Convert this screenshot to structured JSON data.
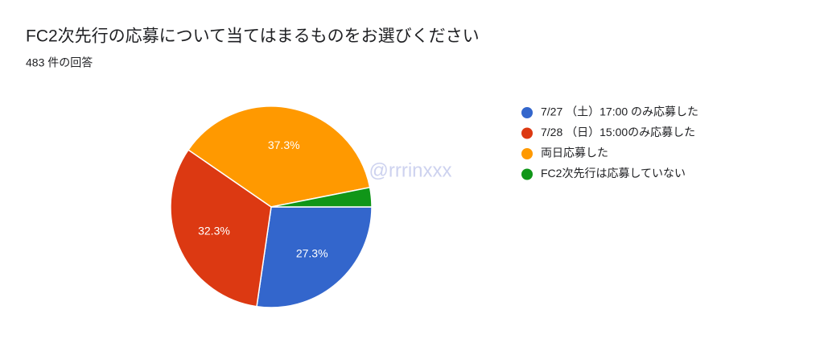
{
  "chart_data": {
    "type": "pie",
    "title": "FC2次先行の応募について当てはまるものをお選びください",
    "subtitle": "483 件の回答",
    "categories": [
      "7/27 （土）17:00 のみ応募した",
      "7/28 （日）15:00のみ応募した",
      "両日応募した",
      "FC2次先行は応募していない"
    ],
    "values": [
      27.3,
      32.3,
      37.3,
      3.1
    ],
    "value_labels": [
      "27.3%",
      "32.3%",
      "37.3%",
      null
    ],
    "colors": [
      "#3366cc",
      "#dc3912",
      "#ff9900",
      "#109618"
    ],
    "legend": "right",
    "annotation": "@rrrinxxx"
  }
}
